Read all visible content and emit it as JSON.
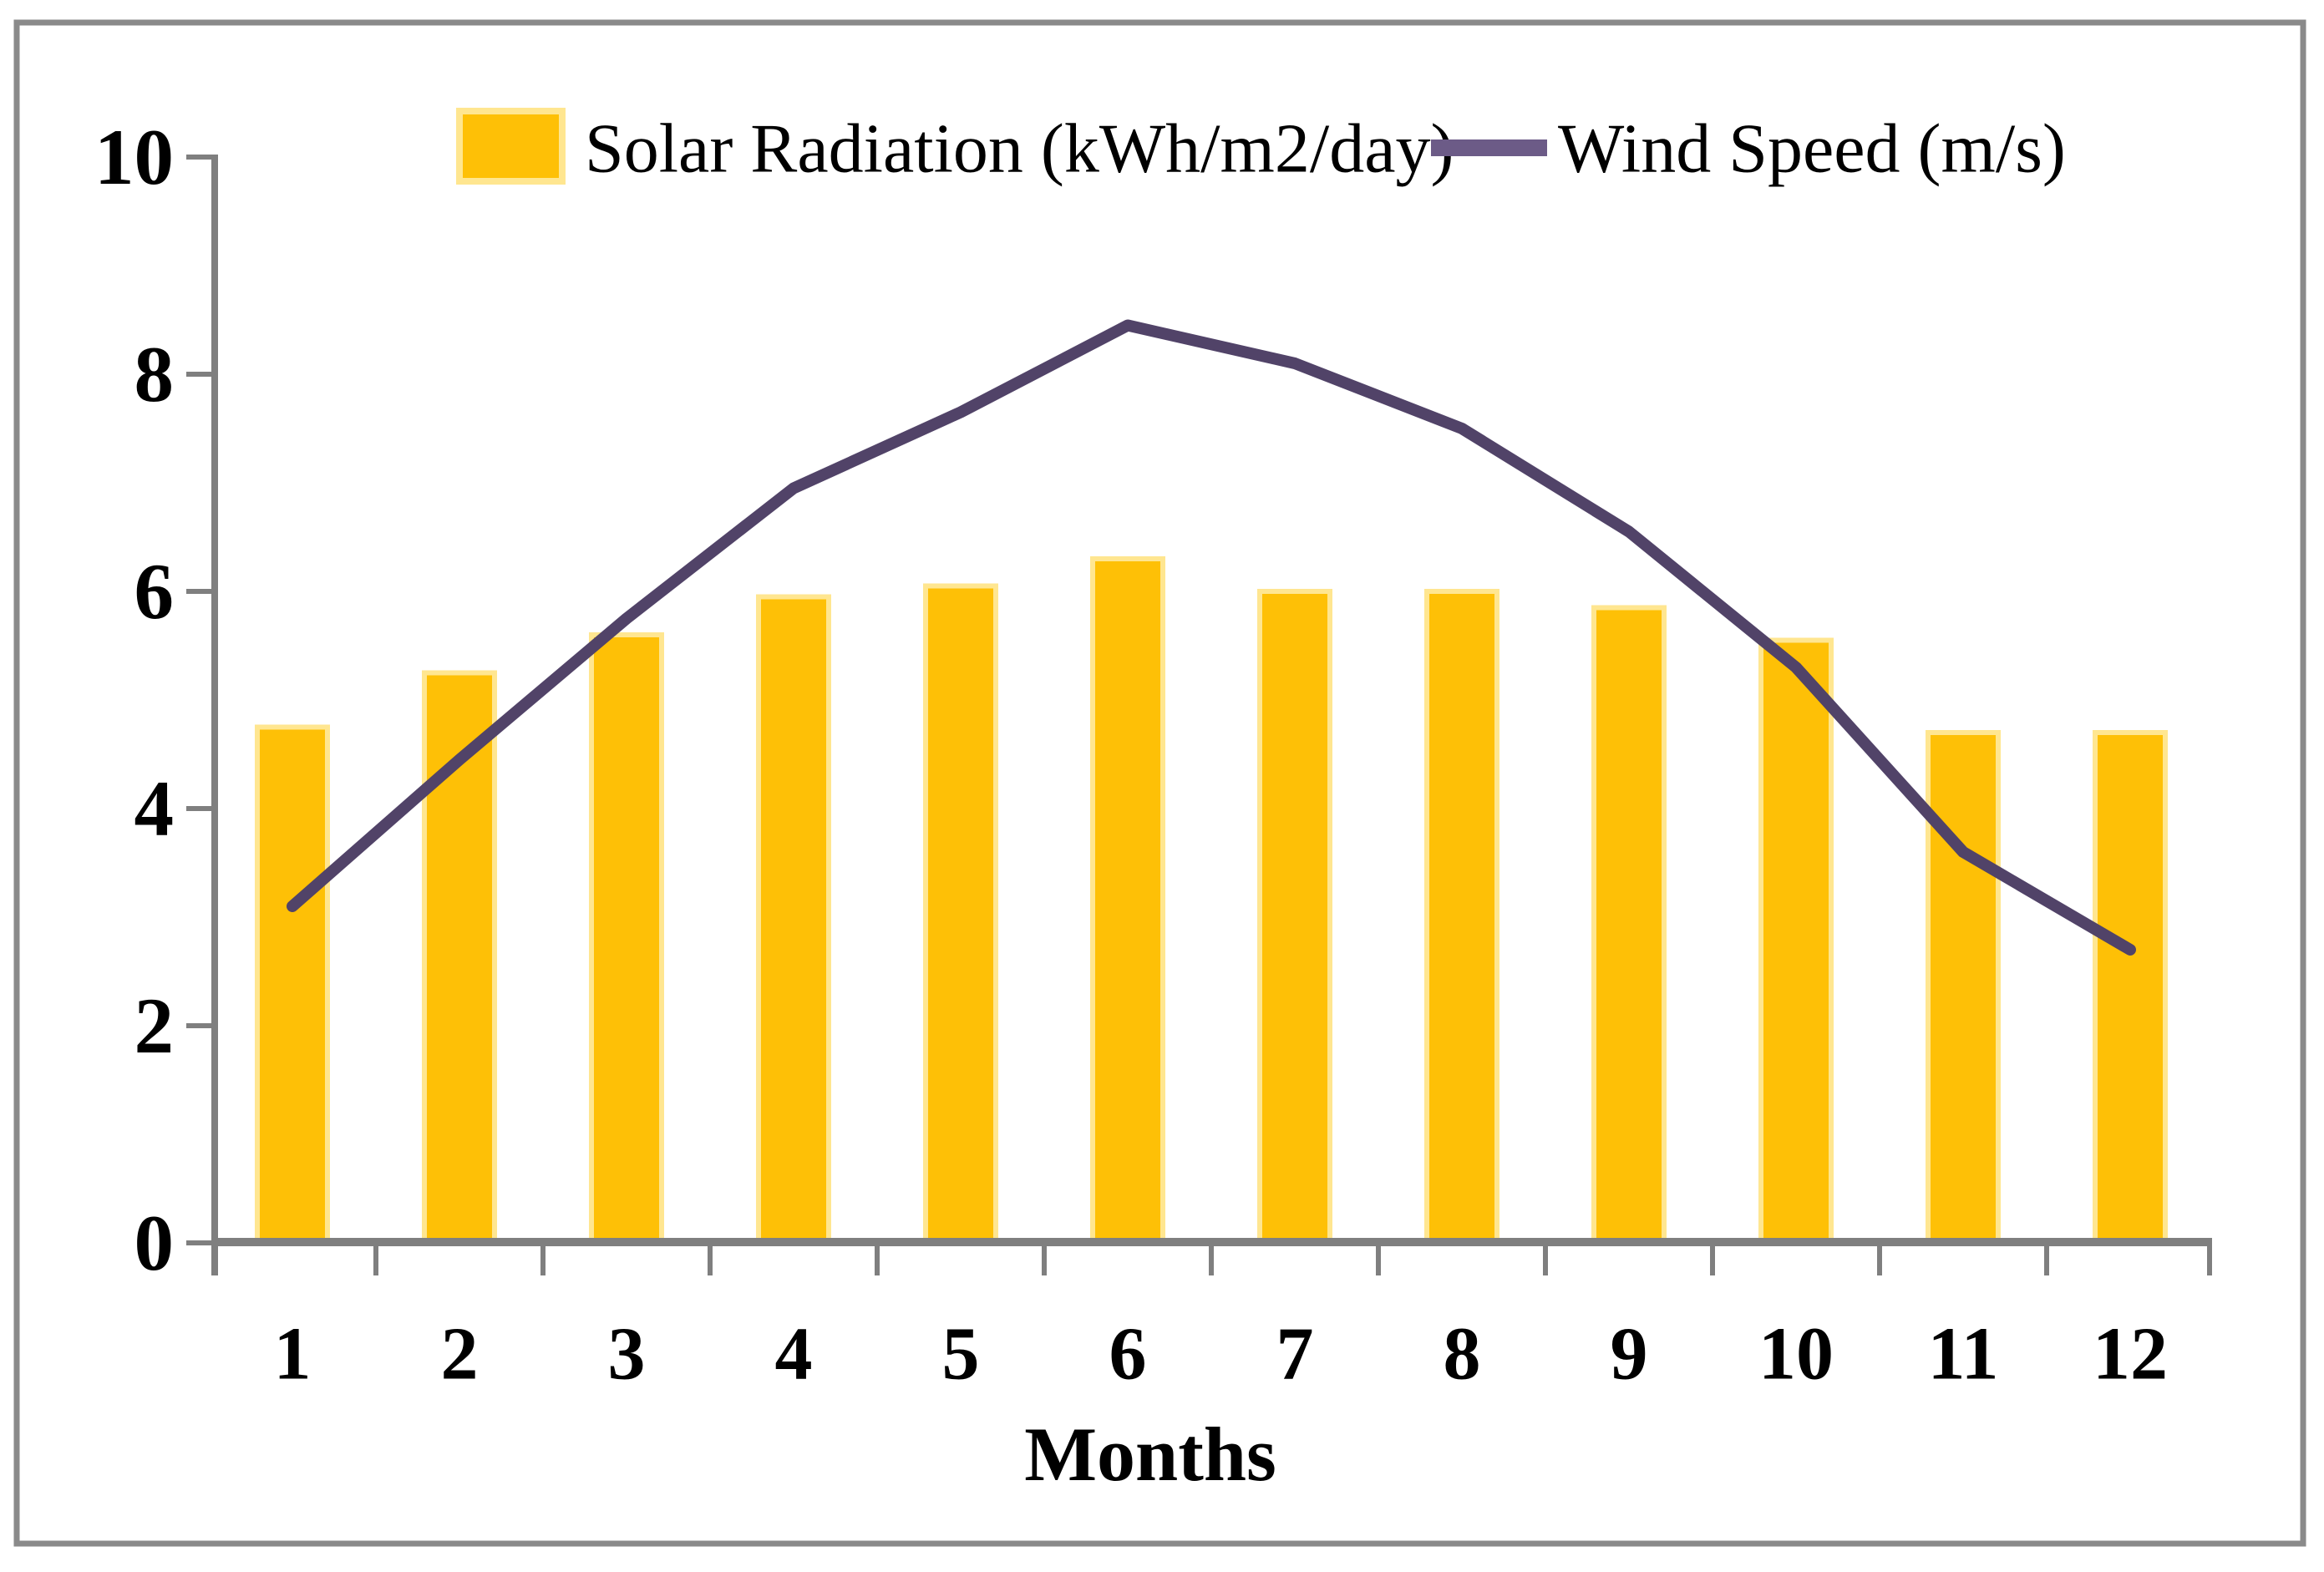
{
  "chart_data": {
    "type": "combo",
    "title": "",
    "xlabel": "Months",
    "ylabel": "",
    "categories": [
      1,
      2,
      3,
      4,
      5,
      6,
      7,
      8,
      9,
      10,
      11,
      12
    ],
    "series": [
      {
        "name": "Solar Radiation (kWh/m2/day)",
        "type": "bar",
        "color": "#FEC006",
        "edge_color": "#FFE690",
        "values": [
          4.75,
          5.25,
          5.6,
          5.95,
          6.05,
          6.3,
          6.0,
          6.0,
          5.85,
          5.55,
          4.7,
          4.7
        ]
      },
      {
        "name": "Wind Speed (m/s)",
        "type": "line",
        "color": "#514368",
        "legend_marker_color": "#6C5B87",
        "values": [
          3.1,
          4.45,
          5.75,
          6.95,
          7.65,
          8.45,
          8.1,
          7.5,
          6.55,
          5.3,
          3.6,
          2.7
        ]
      }
    ],
    "ylim": [
      0,
      10
    ],
    "yticks": [
      0,
      2,
      4,
      6,
      8,
      10
    ],
    "grid": false,
    "legend_position": "top",
    "axis_color": "#7F7F7F",
    "frame_color": "#8A8A8A",
    "background_color": "#FFFFFF"
  }
}
